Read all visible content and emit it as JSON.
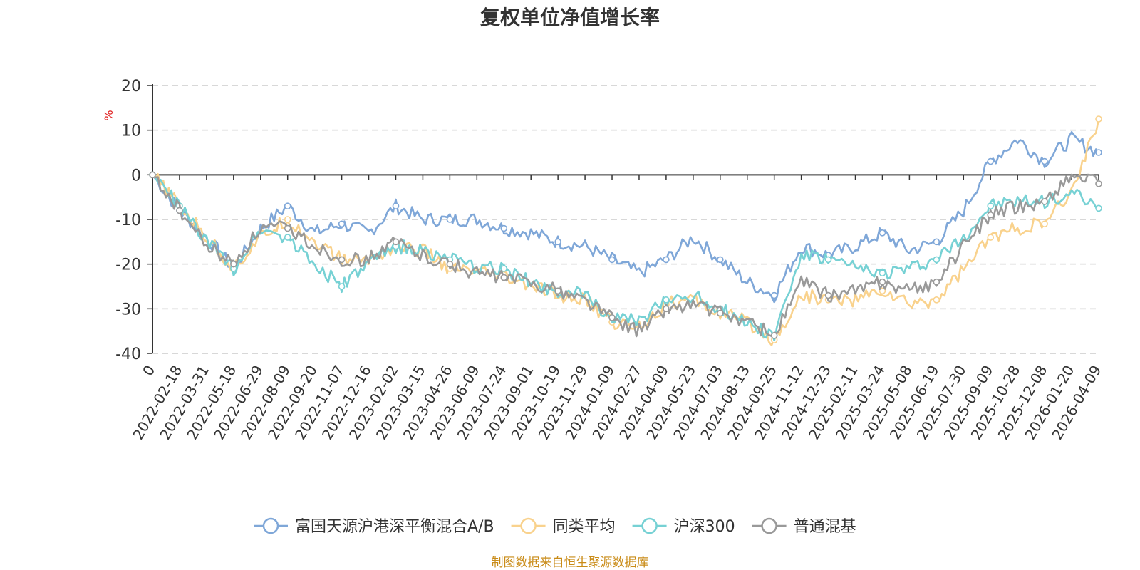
{
  "chart_data": {
    "type": "line",
    "title": "复权单位净值增长率",
    "ylabel": "%",
    "ylim": [
      -40,
      20
    ],
    "yticks": [
      "20",
      "10",
      "0",
      "-10",
      "-20",
      "-30",
      "-40"
    ],
    "ytick_values": [
      20,
      10,
      0,
      -10,
      -20,
      -30,
      -40
    ],
    "x_tick_labels": [
      "0",
      "2022-02-18",
      "2022-03-31",
      "2022-05-18",
      "2022-06-29",
      "2022-08-09",
      "2022-09-20",
      "2022-11-07",
      "2022-12-16",
      "2023-02-02",
      "2023-03-15",
      "2023-04-26",
      "2023-06-09",
      "2023-07-24",
      "2023-09-01",
      "2023-10-19",
      "2023-11-29",
      "2024-01-09",
      "2024-02-27",
      "2024-04-09",
      "2024-05-23",
      "2024-07-03",
      "2024-08-13",
      "2024-09-25",
      "2024-11-12",
      "2024-12-23",
      "2025-02-11",
      "2025-03-24",
      "2025-05-08",
      "2025-06-19",
      "2025-07-30",
      "2025-09-09",
      "2025-10-28",
      "2025-12-08",
      "2026-01-20",
      "2026-04-09"
    ],
    "grid": true,
    "legend_position": "bottom",
    "x": [
      0,
      1,
      2,
      3,
      4,
      5,
      6,
      7,
      8,
      9,
      10,
      11,
      12,
      13,
      14,
      15,
      16,
      17,
      18,
      19,
      20,
      21,
      22,
      23,
      24,
      25,
      26,
      27,
      28,
      29,
      30,
      31,
      32,
      33,
      34,
      35
    ],
    "series": [
      {
        "name": "富国天源沪港深平衡混合A/B",
        "color": "#7fa7d8",
        "values": [
          0,
          -8,
          -14,
          -21,
          -12,
          -7,
          -13,
          -11,
          -13,
          -7,
          -10,
          -10,
          -10,
          -12,
          -13,
          -15,
          -16,
          -19,
          -22,
          -19,
          -14,
          -19,
          -24,
          -27,
          -16,
          -18,
          -16,
          -13,
          -17,
          -15,
          -8,
          3,
          8,
          3,
          8,
          5
        ]
      },
      {
        "name": "同类平均",
        "color": "#f9d28d",
        "values": [
          0,
          -7,
          -14,
          -21,
          -14,
          -10,
          -15,
          -19,
          -19,
          -16,
          -17,
          -21,
          -22,
          -23,
          -25,
          -27,
          -28,
          -33,
          -34,
          -29,
          -28,
          -31,
          -33,
          -37,
          -27,
          -28,
          -28,
          -26,
          -29,
          -28,
          -21,
          -14,
          -12,
          -11,
          -4,
          12.5
        ]
      },
      {
        "name": "沪深300",
        "color": "#76d1d4",
        "values": [
          0,
          -7,
          -15,
          -21,
          -12,
          -14,
          -20,
          -25,
          -20,
          -16,
          -17,
          -19,
          -21,
          -21,
          -24,
          -26,
          -27,
          -32,
          -33,
          -28,
          -27,
          -30,
          -33,
          -36,
          -18,
          -19,
          -21,
          -22,
          -21,
          -19,
          -14,
          -7,
          -6,
          -6,
          -4,
          -7.5
        ]
      },
      {
        "name": "普通混基",
        "color": "#999999",
        "values": [
          0,
          -8,
          -16,
          -20,
          -12,
          -12,
          -16,
          -19,
          -19,
          -15,
          -18,
          -20,
          -22,
          -23,
          -24,
          -26,
          -28,
          -32,
          -35,
          -30,
          -29,
          -31,
          -33,
          -36,
          -24,
          -27,
          -26,
          -24,
          -26,
          -24,
          -16,
          -9,
          -7,
          -6,
          0,
          -2
        ]
      }
    ]
  },
  "source_text": "制图数据来自恒生聚源数据库",
  "source_color": "#c98b17",
  "unit_color": "#e02020"
}
